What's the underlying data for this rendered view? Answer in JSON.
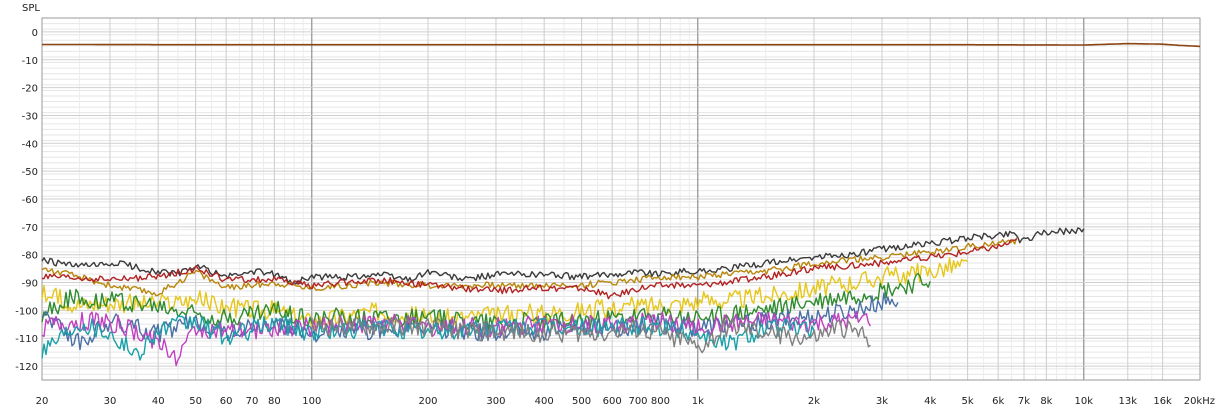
{
  "chart_data": {
    "type": "line",
    "title": "",
    "ylabel": "SPL",
    "xlabel": "",
    "x_scale": "log",
    "xlim": [
      20,
      20000
    ],
    "ylim": [
      -125,
      5
    ],
    "grid": true,
    "legend": "none",
    "y_ticks": [
      {
        "value": 0,
        "label": "0"
      },
      {
        "value": -10,
        "label": "-10"
      },
      {
        "value": -20,
        "label": "-20"
      },
      {
        "value": -30,
        "label": "-30"
      },
      {
        "value": -40,
        "label": "-40"
      },
      {
        "value": -50,
        "label": "-50"
      },
      {
        "value": -60,
        "label": "-60"
      },
      {
        "value": -70,
        "label": "-70"
      },
      {
        "value": -80,
        "label": "-80"
      },
      {
        "value": -90,
        "label": "-90"
      },
      {
        "value": -100,
        "label": "-100"
      },
      {
        "value": -110,
        "label": "-110"
      },
      {
        "value": -120,
        "label": "-120"
      }
    ],
    "x_ticks": [
      {
        "value": 20,
        "label": "20"
      },
      {
        "value": 30,
        "label": "30"
      },
      {
        "value": 40,
        "label": "40"
      },
      {
        "value": 50,
        "label": "50"
      },
      {
        "value": 60,
        "label": "60"
      },
      {
        "value": 70,
        "label": "70"
      },
      {
        "value": 80,
        "label": "80"
      },
      {
        "value": 100,
        "label": "100"
      },
      {
        "value": 200,
        "label": "200"
      },
      {
        "value": 300,
        "label": "300"
      },
      {
        "value": 400,
        "label": "400"
      },
      {
        "value": 500,
        "label": "500"
      },
      {
        "value": 600,
        "label": "600"
      },
      {
        "value": 700,
        "label": "700"
      },
      {
        "value": 800,
        "label": "800"
      },
      {
        "value": 1000,
        "label": "1k"
      },
      {
        "value": 2000,
        "label": "2k"
      },
      {
        "value": 3000,
        "label": "3k"
      },
      {
        "value": 4000,
        "label": "4k"
      },
      {
        "value": 5000,
        "label": "5k"
      },
      {
        "value": 6000,
        "label": "6k"
      },
      {
        "value": 7000,
        "label": "7k"
      },
      {
        "value": 8000,
        "label": "8k"
      },
      {
        "value": 10000,
        "label": "10k"
      },
      {
        "value": 13000,
        "label": "13k"
      },
      {
        "value": 16000,
        "label": "16k"
      },
      {
        "value": 20000,
        "label": "20kHz"
      }
    ],
    "series": [
      {
        "color": "#8b4513",
        "x": [
          20,
          50,
          100,
          200,
          500,
          1000,
          2000,
          5000,
          10000,
          13000,
          16000,
          18000,
          20000
        ],
        "y": [
          -4.5,
          -4.6,
          -4.6,
          -4.6,
          -4.6,
          -4.6,
          -4.6,
          -4.6,
          -4.7,
          -4.2,
          -4.4,
          -4.9,
          -5.2
        ]
      },
      {
        "color": "#3a3a3a",
        "x": [
          20,
          24,
          28,
          32,
          36,
          40,
          45,
          50,
          55,
          60,
          70,
          80,
          90,
          100,
          120,
          150,
          180,
          200,
          250,
          300,
          400,
          500,
          600,
          700,
          800,
          900,
          1000,
          1200,
          1500,
          2000,
          2500,
          3000,
          4000,
          5000,
          6000,
          6700,
          6800,
          8000,
          10000
        ],
        "y": [
          -82,
          -84,
          -84,
          -83,
          -85,
          -86,
          -87,
          -84,
          -86,
          -88,
          -86,
          -87,
          -90,
          -88,
          -88,
          -87,
          -89,
          -86,
          -89,
          -87,
          -87,
          -88,
          -87,
          -86,
          -87,
          -86,
          -86,
          -85,
          -83,
          -81,
          -80,
          -78,
          -76,
          -74,
          -73,
          -72,
          -75,
          -72,
          -71
        ]
      },
      {
        "color": "#b8860b",
        "x": [
          20,
          25,
          30,
          40,
          50,
          60,
          80,
          100,
          150,
          200,
          300,
          500,
          800,
          1000,
          1500,
          2000,
          3000,
          4000,
          5000,
          6000,
          6700
        ],
        "y": [
          -85,
          -88,
          -91,
          -94,
          -86,
          -92,
          -90,
          -92,
          -90,
          -91,
          -91,
          -91,
          -88,
          -88,
          -86,
          -83,
          -81,
          -79,
          -77,
          -76,
          -75
        ]
      },
      {
        "color": "#b22222",
        "x": [
          20,
          30,
          40,
          50,
          60,
          80,
          100,
          150,
          200,
          300,
          400,
          500,
          600,
          700,
          800,
          1000,
          1500,
          2000,
          3000,
          4000,
          5000,
          6000,
          6700
        ],
        "y": [
          -88,
          -89,
          -88,
          -85,
          -89,
          -89,
          -91,
          -89,
          -91,
          -93,
          -92,
          -92,
          -95,
          -92,
          -91,
          -91,
          -88,
          -85,
          -83,
          -81,
          -79,
          -77,
          -75
        ]
      },
      {
        "color": "#e6c619",
        "x": [
          20,
          25,
          30,
          40,
          50,
          60,
          80,
          100,
          150,
          200,
          300,
          500,
          800,
          1000,
          1500,
          2000,
          3000,
          4000,
          4500,
          5000
        ],
        "y": [
          -94,
          -98,
          -97,
          -98,
          -96,
          -99,
          -100,
          -104,
          -100,
          -103,
          -102,
          -100,
          -98,
          -97,
          -95,
          -92,
          -88,
          -86,
          -84,
          -84
        ]
      },
      {
        "color": "#2e8b2e",
        "x": [
          20,
          23,
          30,
          40,
          50,
          60,
          80,
          100,
          150,
          200,
          300,
          500,
          800,
          1000,
          1500,
          2000,
          3000,
          3500,
          4000
        ],
        "y": [
          -102,
          -96,
          -96,
          -99,
          -101,
          -103,
          -100,
          -103,
          -102,
          -103,
          -104,
          -104,
          -102,
          -103,
          -100,
          -97,
          -93,
          -91,
          -89
        ]
      },
      {
        "color": "#4a6fa5",
        "x": [
          20,
          25,
          30,
          40,
          50,
          60,
          80,
          100,
          150,
          200,
          300,
          500,
          800,
          1000,
          1500,
          2000,
          2500,
          3000,
          3300
        ],
        "y": [
          -100,
          -112,
          -104,
          -108,
          -104,
          -108,
          -105,
          -108,
          -107,
          -106,
          -108,
          -107,
          -105,
          -106,
          -104,
          -102,
          -100,
          -97,
          -96
        ]
      },
      {
        "color": "#c040c0",
        "x": [
          20,
          25,
          30,
          40,
          45,
          50,
          60,
          80,
          100,
          150,
          200,
          300,
          500,
          800,
          1000,
          1500,
          2000,
          2500,
          2800
        ],
        "y": [
          -106,
          -104,
          -104,
          -111,
          -117,
          -106,
          -108,
          -106,
          -106,
          -104,
          -106,
          -106,
          -105,
          -104,
          -106,
          -104,
          -105,
          -104,
          -103
        ]
      },
      {
        "color": "#18a0a8",
        "x": [
          20,
          25,
          30,
          35,
          40,
          50,
          60,
          80,
          100,
          150,
          200,
          300,
          500,
          800,
          1000,
          1200,
          1500,
          2000
        ],
        "y": [
          -114,
          -104,
          -108,
          -116,
          -107,
          -104,
          -110,
          -104,
          -108,
          -106,
          -108,
          -106,
          -106,
          -106,
          -108,
          -112,
          -106,
          -107
        ]
      },
      {
        "color": "#808080",
        "x": [
          100,
          150,
          200,
          300,
          500,
          700,
          900,
          1000,
          1200,
          1500,
          2000,
          2300,
          2600,
          2800
        ],
        "y": [
          -106,
          -106,
          -106,
          -108,
          -108,
          -107,
          -110,
          -114,
          -106,
          -108,
          -110,
          -106,
          -108,
          -110
        ]
      }
    ]
  }
}
